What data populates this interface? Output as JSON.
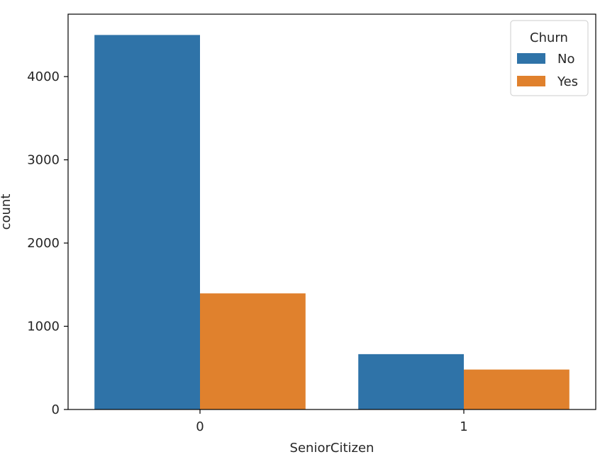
{
  "chart_data": {
    "type": "bar",
    "title": "",
    "xlabel": "SeniorCitizen",
    "ylabel": "count",
    "categories": [
      "0",
      "1"
    ],
    "ylim": [
      0,
      4750
    ],
    "yticks": [
      0,
      1000,
      2000,
      3000,
      4000
    ],
    "grid": false,
    "legend": {
      "title": "Churn",
      "placement": "top-right"
    },
    "series": [
      {
        "name": "No",
        "color": "#2f73a8",
        "values": [
          4500,
          665
        ]
      },
      {
        "name": "Yes",
        "color": "#e0812d",
        "values": [
          1395,
          480
        ]
      }
    ]
  }
}
